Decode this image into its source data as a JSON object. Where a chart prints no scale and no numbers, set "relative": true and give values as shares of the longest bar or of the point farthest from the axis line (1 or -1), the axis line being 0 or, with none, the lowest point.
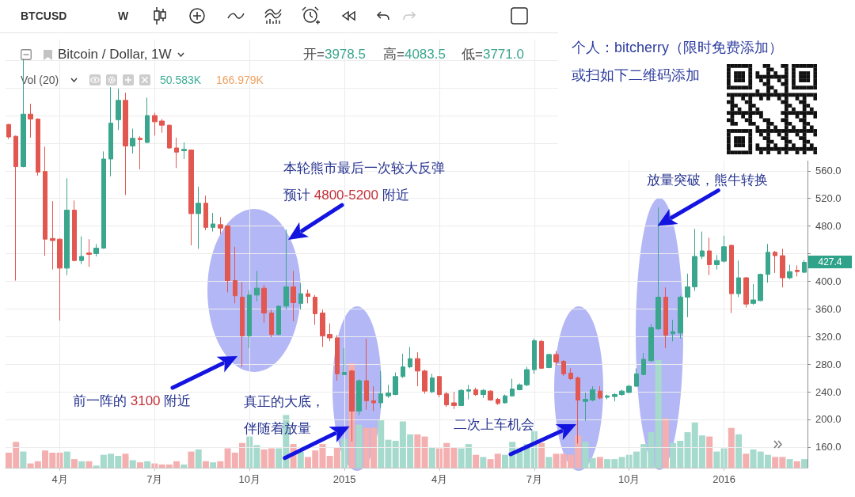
{
  "chart_data": [
    {
      "type": "candlestick",
      "title": "Bitcoin / Dollar, 1W",
      "x": [
        "2014-02-17",
        "2014-02-24",
        "2014-03-03",
        "2014-03-10",
        "2014-03-17",
        "2014-03-24",
        "2014-03-31",
        "2014-04-07",
        "2014-04-14",
        "2014-04-21",
        "2014-04-28",
        "2014-05-05",
        "2014-05-12",
        "2014-05-19",
        "2014-05-26",
        "2014-06-02",
        "2014-06-09",
        "2014-06-16",
        "2014-06-23",
        "2014-06-30",
        "2014-07-07",
        "2014-07-14",
        "2014-07-21",
        "2014-07-28",
        "2014-08-04",
        "2014-08-11",
        "2014-08-18",
        "2014-08-25",
        "2014-09-01",
        "2014-09-08",
        "2014-09-15",
        "2014-09-22",
        "2014-09-29",
        "2014-10-06",
        "2014-10-13",
        "2014-10-20",
        "2014-10-27",
        "2014-11-03",
        "2014-11-10",
        "2014-11-17",
        "2014-11-24",
        "2014-12-01",
        "2014-12-08",
        "2014-12-15",
        "2014-12-22",
        "2014-12-29",
        "2015-01-05",
        "2015-01-12",
        "2015-01-19",
        "2015-01-26",
        "2015-02-02",
        "2015-02-09",
        "2015-02-16",
        "2015-02-23",
        "2015-03-02",
        "2015-03-09",
        "2015-03-16",
        "2015-03-23",
        "2015-03-30",
        "2015-04-06",
        "2015-04-13",
        "2015-04-20",
        "2015-04-27",
        "2015-05-04",
        "2015-05-11",
        "2015-05-18",
        "2015-05-25",
        "2015-06-01",
        "2015-06-08",
        "2015-06-15",
        "2015-06-22",
        "2015-06-29",
        "2015-07-06",
        "2015-07-13",
        "2015-07-20",
        "2015-07-27",
        "2015-08-03",
        "2015-08-10",
        "2015-08-17",
        "2015-08-24",
        "2015-08-31",
        "2015-09-07",
        "2015-09-14",
        "2015-09-21",
        "2015-09-28",
        "2015-10-05",
        "2015-10-12",
        "2015-10-19",
        "2015-10-26",
        "2015-11-02",
        "2015-11-09",
        "2015-11-16",
        "2015-11-23",
        "2015-11-30",
        "2015-12-07",
        "2015-12-14",
        "2015-12-21",
        "2015-12-28",
        "2016-01-04",
        "2016-01-11",
        "2016-01-18",
        "2016-01-25",
        "2016-02-01",
        "2016-02-08",
        "2016-02-15",
        "2016-02-22",
        "2016-02-29",
        "2016-03-07",
        "2016-03-14",
        "2016-03-21"
      ],
      "ohlc": [
        [
          627,
          628,
          606,
          609
        ],
        [
          610,
          611,
          401,
          566
        ],
        [
          566,
          722,
          565,
          642
        ],
        [
          642,
          657,
          608,
          635
        ],
        [
          635,
          636,
          553,
          558
        ],
        [
          559,
          595,
          437,
          461
        ],
        [
          462,
          516,
          417,
          459
        ],
        [
          461,
          462,
          343,
          419
        ],
        [
          419,
          549,
          409,
          503
        ],
        [
          503,
          517,
          429,
          430
        ],
        [
          430,
          465,
          425,
          436
        ],
        [
          441,
          461,
          421,
          439
        ],
        [
          440,
          454,
          436,
          448
        ],
        [
          448,
          588,
          447,
          577
        ],
        [
          577,
          681,
          552,
          629
        ],
        [
          634,
          679,
          619,
          662
        ],
        [
          662,
          673,
          525,
          596
        ],
        [
          596,
          621,
          585,
          607
        ],
        [
          607,
          610,
          562,
          605
        ],
        [
          601,
          666,
          600,
          640
        ],
        [
          640,
          644,
          611,
          631
        ],
        [
          632,
          635,
          615,
          626
        ],
        [
          626,
          627,
          592,
          593
        ],
        [
          593,
          608,
          564,
          587
        ],
        [
          589,
          601,
          577,
          591
        ],
        [
          590,
          591,
          452,
          498
        ],
        [
          498,
          537,
          447,
          513
        ],
        [
          513,
          524,
          474,
          478
        ],
        [
          478,
          499,
          472,
          483
        ],
        [
          482,
          493,
          468,
          477
        ],
        [
          480,
          481,
          384,
          401
        ],
        [
          401,
          450,
          368,
          379
        ],
        [
          377,
          399,
          276,
          321
        ],
        [
          321,
          387,
          303,
          380
        ],
        [
          380,
          415,
          371,
          390
        ],
        [
          390,
          395,
          340,
          354
        ],
        [
          354,
          359,
          319,
          323
        ],
        [
          323,
          365,
          322,
          364
        ],
        [
          364,
          475,
          359,
          392
        ],
        [
          392,
          415,
          342,
          369
        ],
        [
          368,
          397,
          359,
          382
        ],
        [
          382,
          388,
          368,
          378
        ],
        [
          377,
          380,
          337,
          353
        ],
        [
          354,
          359,
          305,
          321
        ],
        [
          323,
          339,
          313,
          318
        ],
        [
          318,
          322,
          256,
          266
        ],
        [
          265,
          303,
          264,
          268
        ],
        [
          270,
          272,
          168,
          212
        ],
        [
          212,
          258,
          206,
          256
        ],
        [
          256,
          317,
          214,
          227
        ],
        [
          227,
          248,
          212,
          224
        ],
        [
          224,
          270,
          216,
          237
        ],
        [
          234,
          250,
          231,
          238
        ],
        [
          236,
          268,
          235,
          262
        ],
        [
          262,
          295,
          260,
          276
        ],
        [
          276,
          305,
          274,
          288
        ],
        [
          288,
          297,
          248,
          270
        ],
        [
          270,
          272,
          237,
          241
        ],
        [
          240,
          266,
          238,
          260
        ],
        [
          262,
          263,
          232,
          236
        ],
        [
          237,
          240,
          218,
          221
        ],
        [
          224,
          240,
          215,
          220
        ],
        [
          220,
          244,
          219,
          242
        ],
        [
          241,
          250,
          229,
          243
        ],
        [
          243,
          246,
          234,
          236
        ],
        [
          236,
          244,
          231,
          242
        ],
        [
          241,
          242,
          227,
          228
        ],
        [
          229,
          231,
          221,
          223
        ],
        [
          224,
          236,
          223,
          234
        ],
        [
          234,
          259,
          233,
          244
        ],
        [
          243,
          252,
          242,
          250
        ],
        [
          250,
          276,
          248,
          272
        ],
        [
          272,
          317,
          266,
          314
        ],
        [
          313,
          315,
          273,
          274
        ],
        [
          275,
          295,
          274,
          294
        ],
        [
          294,
          299,
          278,
          283
        ],
        [
          284,
          286,
          263,
          266
        ],
        [
          267,
          274,
          257,
          259
        ],
        [
          260,
          262,
          165,
          228
        ],
        [
          226,
          239,
          198,
          229
        ],
        [
          228,
          248,
          226,
          243
        ],
        [
          241,
          248,
          229,
          231
        ],
        [
          232,
          236,
          229,
          234
        ],
        [
          233,
          238,
          226,
          236
        ],
        [
          236,
          243,
          234,
          241
        ],
        [
          239,
          250,
          238,
          248
        ],
        [
          248,
          274,
          247,
          266
        ],
        [
          265,
          296,
          264,
          287
        ],
        [
          285,
          338,
          283,
          333
        ],
        [
          331,
          507,
          329,
          377
        ],
        [
          377,
          391,
          303,
          322
        ],
        [
          324,
          344,
          313,
          327
        ],
        [
          325,
          379,
          317,
          377
        ],
        [
          377,
          411,
          348,
          392
        ],
        [
          392,
          476,
          386,
          436
        ],
        [
          436,
          472,
          432,
          444
        ],
        [
          444,
          463,
          409,
          424
        ],
        [
          424,
          438,
          417,
          430
        ],
        [
          429,
          466,
          427,
          450
        ],
        [
          452,
          453,
          354,
          382
        ],
        [
          382,
          430,
          377,
          405
        ],
        [
          405,
          406,
          362,
          367
        ],
        [
          368,
          396,
          366,
          373
        ],
        [
          372,
          411,
          371,
          410
        ],
        [
          410,
          454,
          398,
          442
        ],
        [
          442,
          444,
          412,
          437
        ],
        [
          437,
          447,
          391,
          405
        ],
        [
          405,
          424,
          403,
          414
        ],
        [
          416,
          423,
          407,
          414
        ],
        [
          413,
          431,
          412,
          427.4
        ]
      ],
      "colors": [
        "#e2574f",
        "#e2574f",
        "#3aa68d",
        "#e2574f",
        "#e2574f",
        "#e2574f",
        "#e2574f",
        "#e2574f",
        "#3aa68d",
        "#e2574f",
        "#3aa68d",
        "#e2574f",
        "#3aa68d",
        "#3aa68d",
        "#3aa68d",
        "#3aa68d",
        "#e2574f",
        "#3aa68d",
        "#e2574f",
        "#3aa68d",
        "#e2574f",
        "#e2574f",
        "#e2574f",
        "#e2574f",
        "#3aa68d",
        "#e2574f",
        "#3aa68d",
        "#e2574f",
        "#3aa68d",
        "#e2574f",
        "#e2574f",
        "#e2574f",
        "#e2574f",
        "#3aa68d",
        "#3aa68d",
        "#e2574f",
        "#e2574f",
        "#3aa68d",
        "#3aa68d",
        "#e2574f",
        "#3aa68d",
        "#e2574f",
        "#e2574f",
        "#e2574f",
        "#e2574f",
        "#e2574f",
        "#3aa68d",
        "#e2574f",
        "#3aa68d",
        "#e2574f",
        "#e2574f",
        "#3aa68d",
        "#3aa68d",
        "#3aa68d",
        "#3aa68d",
        "#3aa68d",
        "#e2574f",
        "#e2574f",
        "#3aa68d",
        "#e2574f",
        "#e2574f",
        "#e2574f",
        "#3aa68d",
        "#3aa68d",
        "#e2574f",
        "#3aa68d",
        "#e2574f",
        "#e2574f",
        "#3aa68d",
        "#3aa68d",
        "#3aa68d",
        "#3aa68d",
        "#3aa68d",
        "#e2574f",
        "#3aa68d",
        "#e2574f",
        "#e2574f",
        "#e2574f",
        "#e2574f",
        "#3aa68d",
        "#3aa68d",
        "#e2574f",
        "#3aa68d",
        "#3aa68d",
        "#3aa68d",
        "#3aa68d",
        "#3aa68d",
        "#3aa68d",
        "#3aa68d",
        "#3aa68d",
        "#e2574f",
        "#3aa68d",
        "#3aa68d",
        "#3aa68d",
        "#3aa68d",
        "#3aa68d",
        "#e2574f",
        "#3aa68d",
        "#3aa68d",
        "#e2574f",
        "#3aa68d",
        "#e2574f",
        "#3aa68d",
        "#3aa68d",
        "#3aa68d",
        "#e2574f",
        "#e2574f",
        "#3aa68d",
        "#e2574f",
        "#3aa68d"
      ],
      "xlim": [
        "2014-02-14",
        "2016-03-24"
      ],
      "xticks": [
        {
          "value": "2014-04-07",
          "label": "4月"
        },
        {
          "value": "2014-07-07",
          "label": "7月"
        },
        {
          "value": "2014-10-06",
          "label": "10月"
        },
        {
          "value": "2015-01-05",
          "label": "2015"
        },
        {
          "value": "2015-04-06",
          "label": "4月"
        },
        {
          "value": "2015-07-06",
          "label": "7月"
        },
        {
          "value": "2015-10-05",
          "label": "10月"
        },
        {
          "value": "2016-01-04",
          "label": "2016"
        }
      ],
      "ylim": [
        130,
        750
      ],
      "yticks": [
        {
          "value": 160,
          "label": "160.0"
        },
        {
          "value": 200,
          "label": "200.0"
        },
        {
          "value": 240,
          "label": "240.0"
        },
        {
          "value": 280,
          "label": "280.0"
        },
        {
          "value": 320,
          "label": "320.0"
        },
        {
          "value": 360,
          "label": "360.0"
        },
        {
          "value": 400,
          "label": "400.0"
        },
        {
          "value": 440,
          "label": null
        },
        {
          "value": 480,
          "label": "480.0"
        },
        {
          "value": 520,
          "label": "520.0"
        },
        {
          "value": 560,
          "label": "560.0"
        },
        {
          "value": 600,
          "label": null
        },
        {
          "value": 640,
          "label": null
        },
        {
          "value": 680,
          "label": null
        },
        {
          "value": 720,
          "label": null
        }
      ],
      "grid": true,
      "annotations": [
        "BTCUSD",
        "W",
        "开=3978.5",
        "高=4083.5",
        "低=3771.0",
        "427.4",
        {
          "text": "本轮熊市最后一次较大反弹预计 4800-5200 附近",
          "x": "2014-11-12",
          "y": 460
        },
        "前一阵的 3100 附近",
        {
          "text": "真正的大底，伴随着放量",
          "x": "2015-01-10",
          "y": 190
        },
        "二次上车机会",
        {
          "text": "放量突破，熊牛转换",
          "x": "2015-11-01",
          "y": 480
        },
        "个人：bitcherry（限时免费添加）",
        "或扫如下二维码添加"
      ]
    },
    {
      "type": "bar",
      "title": "Vol (20)",
      "relative": true,
      "x": [
        "2014-02-17",
        "2014-02-24",
        "2014-03-03",
        "2014-03-10",
        "2014-03-17",
        "2014-03-24",
        "2014-03-31",
        "2014-04-07",
        "2014-04-14",
        "2014-04-21",
        "2014-04-28",
        "2014-05-05",
        "2014-05-12",
        "2014-05-19",
        "2014-05-26",
        "2014-06-02",
        "2014-06-09",
        "2014-06-16",
        "2014-06-23",
        "2014-06-30",
        "2014-07-07",
        "2014-07-14",
        "2014-07-21",
        "2014-07-28",
        "2014-08-04",
        "2014-08-11",
        "2014-08-18",
        "2014-08-25",
        "2014-09-01",
        "2014-09-08",
        "2014-09-15",
        "2014-09-22",
        "2014-09-29",
        "2014-10-06",
        "2014-10-13",
        "2014-10-20",
        "2014-10-27",
        "2014-11-03",
        "2014-11-10",
        "2014-11-17",
        "2014-11-24",
        "2014-12-01",
        "2014-12-08",
        "2014-12-15",
        "2014-12-22",
        "2014-12-29",
        "2015-01-05",
        "2015-01-12",
        "2015-01-19",
        "2015-01-26",
        "2015-02-02",
        "2015-02-09",
        "2015-02-16",
        "2015-02-23",
        "2015-03-02",
        "2015-03-09",
        "2015-03-16",
        "2015-03-23",
        "2015-03-30",
        "2015-04-06",
        "2015-04-13",
        "2015-04-20",
        "2015-04-27",
        "2015-05-04",
        "2015-05-11",
        "2015-05-18",
        "2015-05-25",
        "2015-06-01",
        "2015-06-08",
        "2015-06-15",
        "2015-06-22",
        "2015-06-29",
        "2015-07-06",
        "2015-07-13",
        "2015-07-20",
        "2015-07-27",
        "2015-08-03",
        "2015-08-10",
        "2015-08-17",
        "2015-08-24",
        "2015-08-31",
        "2015-09-07",
        "2015-09-14",
        "2015-09-21",
        "2015-09-28",
        "2015-10-05",
        "2015-10-12",
        "2015-10-19",
        "2015-10-26",
        "2015-11-02",
        "2015-11-09",
        "2015-11-16",
        "2015-11-23",
        "2015-11-30",
        "2015-12-07",
        "2015-12-14",
        "2015-12-21",
        "2015-12-28",
        "2016-01-04",
        "2016-01-11",
        "2016-01-18",
        "2016-01-25",
        "2016-02-01",
        "2016-02-08",
        "2016-02-15",
        "2016-02-22",
        "2016-02-29",
        "2016-03-07",
        "2016-03-14",
        "2016-03-21"
      ],
      "values": [
        0.14,
        0.24,
        0.15,
        0.04,
        0.06,
        0.16,
        0.14,
        0.14,
        0.15,
        0.08,
        0.06,
        0.06,
        0.02,
        0.12,
        0.13,
        0.11,
        0.13,
        0.07,
        0.05,
        0.06,
        0.04,
        0.03,
        0.03,
        0.06,
        0.03,
        0.15,
        0.17,
        0.06,
        0.05,
        0.06,
        0.18,
        0.14,
        0.23,
        0.29,
        0.21,
        0.17,
        0.18,
        0.18,
        0.49,
        0.22,
        0.15,
        0.1,
        0.16,
        0.22,
        0.11,
        0.19,
        0.27,
        0.97,
        0.4,
        0.37,
        0.37,
        0.44,
        0.26,
        0.25,
        0.43,
        0.31,
        0.31,
        0.29,
        0.19,
        0.18,
        0.23,
        0.19,
        0.18,
        0.22,
        0.12,
        0.1,
        0.08,
        0.13,
        0.12,
        0.24,
        0.18,
        0.22,
        0.34,
        0.23,
        0.1,
        0.13,
        0.13,
        0.12,
        0.3,
        0.24,
        0.09,
        0.1,
        0.08,
        0.08,
        0.1,
        0.12,
        0.15,
        0.22,
        0.33,
        1,
        0.46,
        0.23,
        0.25,
        0.33,
        0.42,
        0.3,
        0.29,
        0.15,
        0.18,
        0.37,
        0.31,
        0.13,
        0.17,
        0.15,
        0.12,
        0.1,
        0.1,
        0.08,
        0.06,
        0.08
      ],
      "colors": [
        "#f4b0b0",
        "#f4b0b0",
        "#a6dacd",
        "#f4b0b0",
        "#f4b0b0",
        "#f4b0b0",
        "#f4b0b0",
        "#f4b0b0",
        "#a6dacd",
        "#f4b0b0",
        "#a6dacd",
        "#f4b0b0",
        "#a6dacd",
        "#a6dacd",
        "#a6dacd",
        "#a6dacd",
        "#f4b0b0",
        "#a6dacd",
        "#f4b0b0",
        "#a6dacd",
        "#f4b0b0",
        "#f4b0b0",
        "#f4b0b0",
        "#f4b0b0",
        "#a6dacd",
        "#f4b0b0",
        "#a6dacd",
        "#f4b0b0",
        "#a6dacd",
        "#f4b0b0",
        "#f4b0b0",
        "#f4b0b0",
        "#f4b0b0",
        "#a6dacd",
        "#a6dacd",
        "#f4b0b0",
        "#f4b0b0",
        "#a6dacd",
        "#a6dacd",
        "#f4b0b0",
        "#a6dacd",
        "#f4b0b0",
        "#f4b0b0",
        "#f4b0b0",
        "#f4b0b0",
        "#f4b0b0",
        "#a6dacd",
        "#f4b0b0",
        "#a6dacd",
        "#f4b0b0",
        "#f4b0b0",
        "#a6dacd",
        "#a6dacd",
        "#a6dacd",
        "#a6dacd",
        "#a6dacd",
        "#f4b0b0",
        "#f4b0b0",
        "#a6dacd",
        "#f4b0b0",
        "#f4b0b0",
        "#f4b0b0",
        "#a6dacd",
        "#a6dacd",
        "#f4b0b0",
        "#a6dacd",
        "#f4b0b0",
        "#f4b0b0",
        "#a6dacd",
        "#a6dacd",
        "#a6dacd",
        "#a6dacd",
        "#a6dacd",
        "#f4b0b0",
        "#a6dacd",
        "#f4b0b0",
        "#f4b0b0",
        "#f4b0b0",
        "#f4b0b0",
        "#a6dacd",
        "#a6dacd",
        "#f4b0b0",
        "#a6dacd",
        "#a6dacd",
        "#a6dacd",
        "#a6dacd",
        "#a6dacd",
        "#a6dacd",
        "#a6dacd",
        "#a6dacd",
        "#f4b0b0",
        "#a6dacd",
        "#a6dacd",
        "#a6dacd",
        "#a6dacd",
        "#a6dacd",
        "#f4b0b0",
        "#a6dacd",
        "#a6dacd",
        "#f4b0b0",
        "#a6dacd",
        "#f4b0b0",
        "#a6dacd",
        "#a6dacd",
        "#a6dacd",
        "#f4b0b0",
        "#f4b0b0",
        "#a6dacd",
        "#f4b0b0",
        "#a6dacd"
      ],
      "xlim": [
        "2014-02-14",
        "2016-03-24"
      ],
      "annotations": [
        "50.583K",
        "166.979K"
      ]
    }
  ]
}
